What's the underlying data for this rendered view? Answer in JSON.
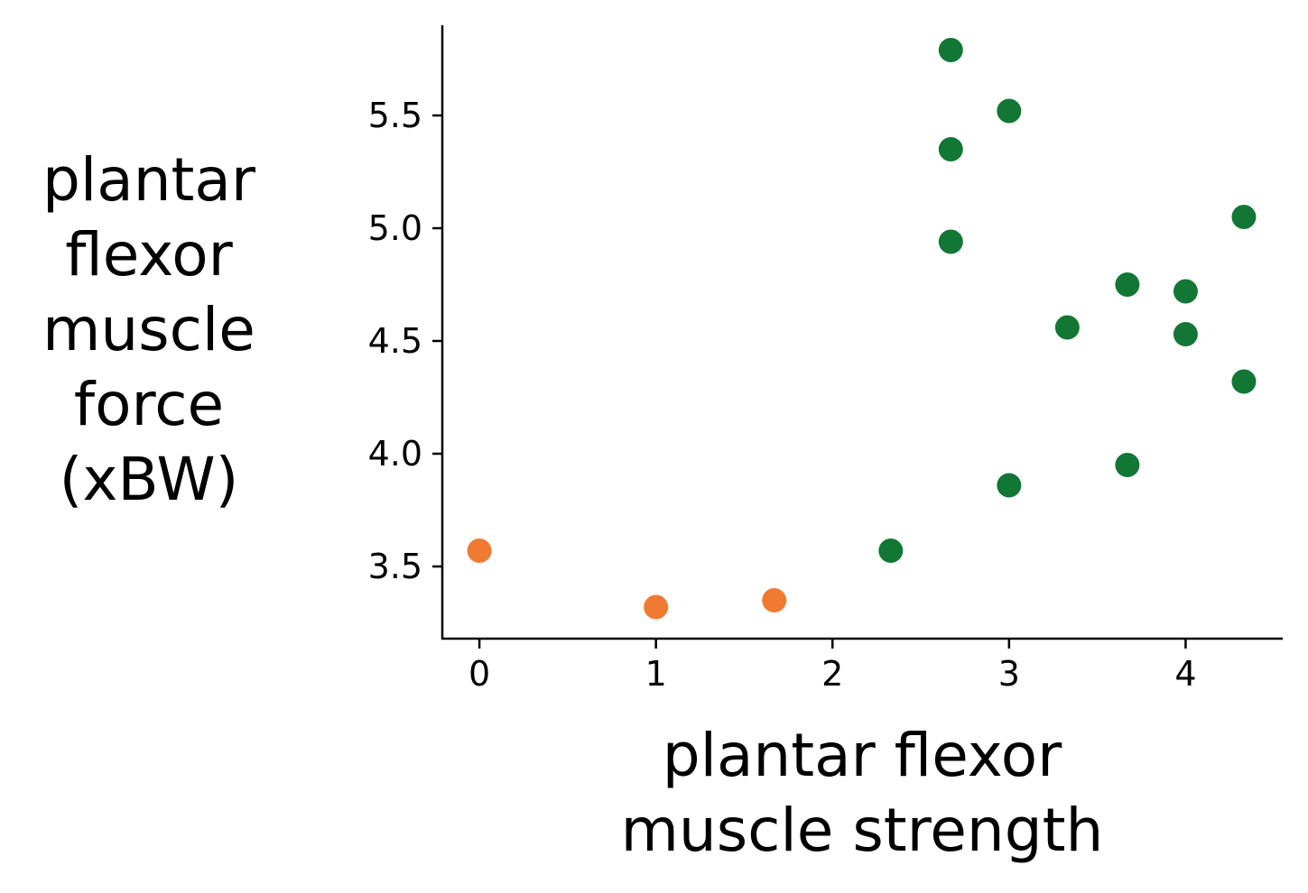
{
  "chart_data": {
    "type": "scatter",
    "title": "",
    "xlabel": [
      "plantar flexor",
      "muscle strength"
    ],
    "ylabel": [
      "plantar",
      "flexor",
      "muscle",
      "force",
      "(xBW)"
    ],
    "xlim": [
      -0.21,
      4.55
    ],
    "ylim": [
      3.18,
      5.9
    ],
    "x_ticks": [
      0,
      1,
      2,
      3,
      4
    ],
    "x_tick_labels": [
      "0",
      "1",
      "2",
      "3",
      "4"
    ],
    "y_ticks": [
      3.5,
      4.0,
      4.5,
      5.0,
      5.5
    ],
    "y_tick_labels": [
      "3.5",
      "4.0",
      "4.5",
      "5.0",
      "5.5"
    ],
    "grid": false,
    "legend": "none",
    "series": [
      {
        "color": "#f07a32",
        "points": [
          {
            "x": 0,
            "y": 3.57
          },
          {
            "x": 1,
            "y": 3.32
          },
          {
            "x": 1.67,
            "y": 3.35
          }
        ]
      },
      {
        "color": "#127734",
        "points": [
          {
            "x": 2.33,
            "y": 3.57
          },
          {
            "x": 2.67,
            "y": 5.79
          },
          {
            "x": 2.67,
            "y": 5.35
          },
          {
            "x": 2.67,
            "y": 4.94
          },
          {
            "x": 3.0,
            "y": 5.52
          },
          {
            "x": 3.0,
            "y": 3.86
          },
          {
            "x": 3.33,
            "y": 4.56
          },
          {
            "x": 3.67,
            "y": 4.75
          },
          {
            "x": 3.67,
            "y": 3.95
          },
          {
            "x": 4.0,
            "y": 4.72
          },
          {
            "x": 4.0,
            "y": 4.53
          },
          {
            "x": 4.33,
            "y": 5.05
          },
          {
            "x": 4.33,
            "y": 4.32
          }
        ]
      }
    ]
  }
}
